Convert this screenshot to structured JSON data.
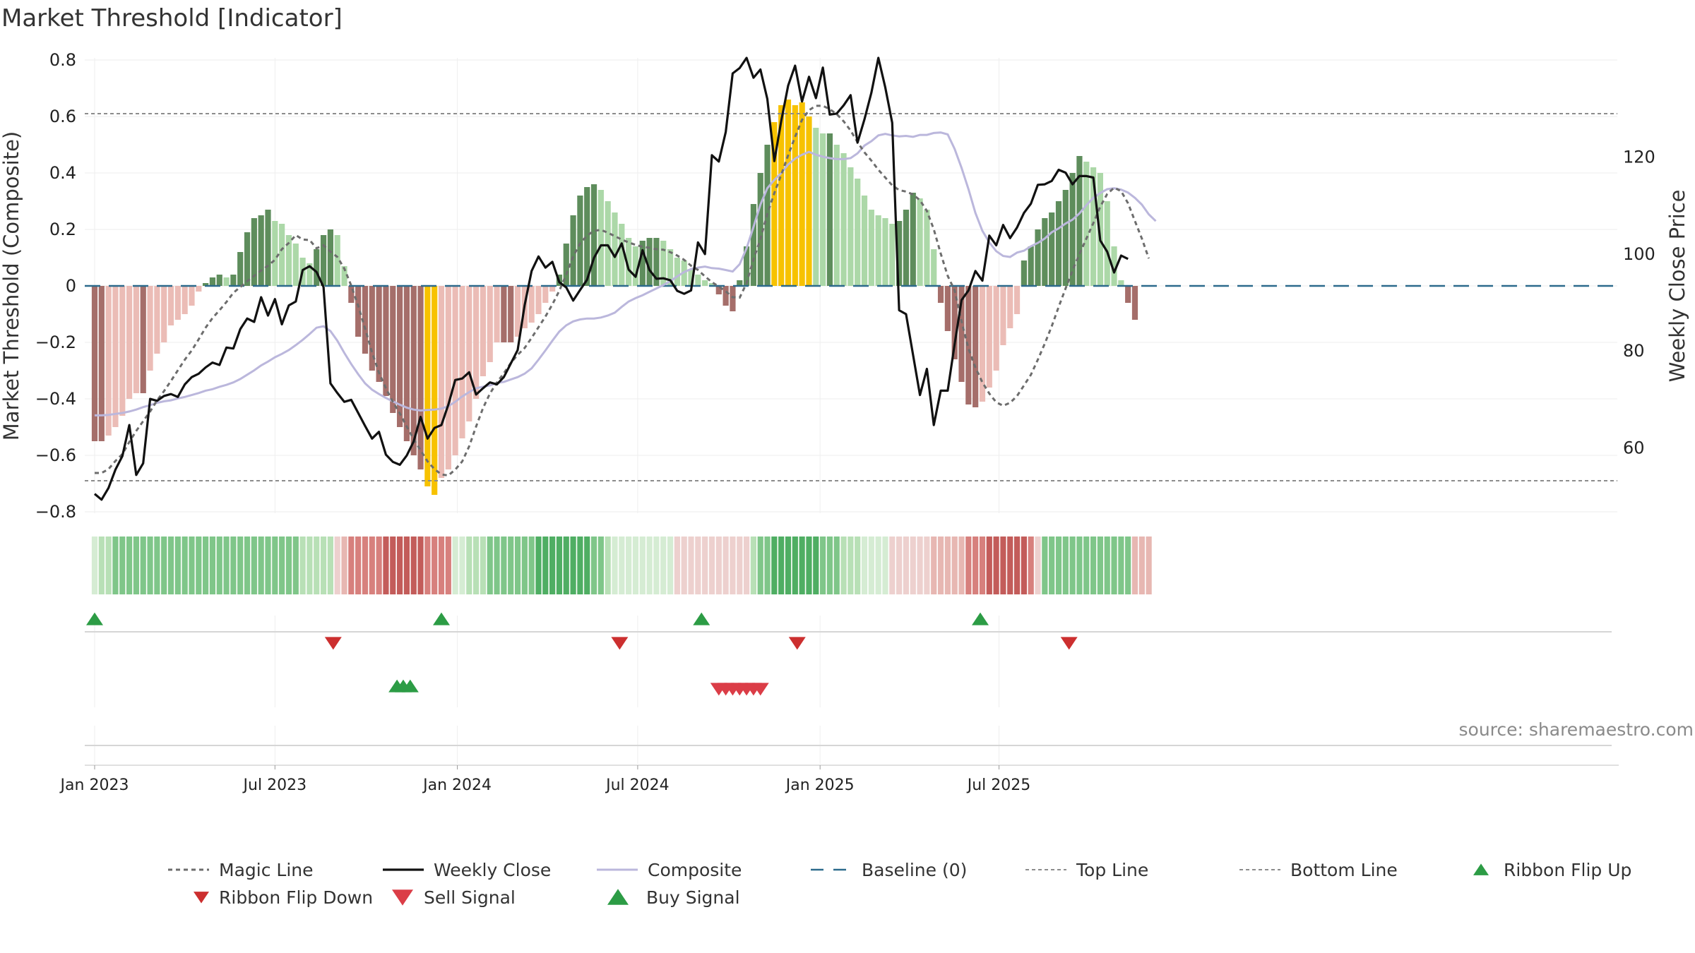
{
  "chart_data": {
    "type": "bar",
    "title": "Market Threshold [Indicator]",
    "ylabel_left": "Market Threshold (Composite)",
    "ylabel_right": "Weekly Close Price",
    "ylim_left": [
      -0.8,
      0.8
    ],
    "ylim_right": [
      46.5,
      140.5
    ],
    "yticks_left": [
      {
        "value": 0.8,
        "label": "0.8"
      },
      {
        "value": 0.6,
        "label": "0.6"
      },
      {
        "value": 0.4,
        "label": "0.4"
      },
      {
        "value": 0.2,
        "label": "0.2"
      },
      {
        "value": 0,
        "label": "0"
      },
      {
        "value": -0.2,
        "label": "−0.2"
      },
      {
        "value": -0.4,
        "label": "−0.4"
      },
      {
        "value": -0.6,
        "label": "−0.6"
      },
      {
        "value": -0.8,
        "label": "−0.8"
      }
    ],
    "yticks_right": [
      {
        "value": 120,
        "label": "120"
      },
      {
        "value": 100,
        "label": "100"
      },
      {
        "value": 80,
        "label": "80"
      },
      {
        "value": 60,
        "label": "60"
      }
    ],
    "xticks": [
      {
        "week": 0,
        "label": "Jan 2023"
      },
      {
        "week": 26,
        "label": "Jul 2023"
      },
      {
        "week": 52.3,
        "label": "Jan 2024"
      },
      {
        "week": 78.3,
        "label": "Jul 2024"
      },
      {
        "week": 104.6,
        "label": "Jan 2025"
      },
      {
        "week": 130.4,
        "label": "Jul 2025"
      }
    ],
    "top_line": 0.61,
    "bottom_line": -0.69,
    "baseline": 0,
    "composite_bars": [
      -0.55,
      -0.55,
      -0.53,
      -0.5,
      -0.46,
      -0.4,
      -0.38,
      -0.38,
      -0.3,
      -0.24,
      -0.2,
      -0.14,
      -0.12,
      -0.1,
      -0.07,
      -0.02,
      0.01,
      0.03,
      0.04,
      0.03,
      0.04,
      0.12,
      0.19,
      0.24,
      0.25,
      0.27,
      0.23,
      0.22,
      0.18,
      0.15,
      0.1,
      0.08,
      0.13,
      0.18,
      0.2,
      0.18,
      0.07,
      -0.06,
      -0.18,
      -0.24,
      -0.3,
      -0.34,
      -0.39,
      -0.45,
      -0.5,
      -0.55,
      -0.6,
      -0.65,
      -0.71,
      -0.74,
      -0.68,
      -0.65,
      -0.6,
      -0.54,
      -0.48,
      -0.4,
      -0.32,
      -0.27,
      -0.2,
      -0.2,
      -0.2,
      -0.18,
      -0.15,
      -0.13,
      -0.1,
      -0.06,
      -0.02,
      0.04,
      0.15,
      0.25,
      0.32,
      0.35,
      0.36,
      0.34,
      0.3,
      0.26,
      0.22,
      0.17,
      0.14,
      0.16,
      0.17,
      0.17,
      0.16,
      0.13,
      0.1,
      0.09,
      0.06,
      0.04,
      0.02,
      0.01,
      -0.03,
      -0.07,
      -0.09,
      0.02,
      0.14,
      0.29,
      0.4,
      0.5,
      0.58,
      0.64,
      0.66,
      0.64,
      0.65,
      0.6,
      0.56,
      0.54,
      0.54,
      0.5,
      0.47,
      0.42,
      0.38,
      0.32,
      0.27,
      0.25,
      0.24,
      0.22,
      0.23,
      0.27,
      0.33,
      0.31,
      0.27,
      0.13,
      -0.06,
      -0.16,
      -0.26,
      -0.34,
      -0.42,
      -0.43,
      -0.41,
      -0.36,
      -0.3,
      -0.21,
      -0.15,
      -0.1,
      0.09,
      0.14,
      0.2,
      0.24,
      0.26,
      0.3,
      0.34,
      0.4,
      0.46,
      0.44,
      0.42,
      0.4,
      0.3,
      0.14,
      0.02,
      -0.06,
      -0.12
    ],
    "price_weekly_close": [
      50.5,
      49.3,
      51.7,
      55.5,
      58.3,
      64.7,
      54.4,
      56.8,
      70.1,
      69.7,
      70.7,
      71.1,
      70.5,
      73.1,
      74.6,
      75.3,
      76.6,
      77.6,
      77.1,
      80.7,
      80.5,
      84.5,
      86.7,
      86,
      91.1,
      87.3,
      90.7,
      85.5,
      89.4,
      90.2,
      96.7,
      97.5,
      96.3,
      93.2,
      73.3,
      71.3,
      69.5,
      69.9,
      67.2,
      64.5,
      61.9,
      63.3,
      58.6,
      57.1,
      56.5,
      58.4,
      61.3,
      66.4,
      61.9,
      64.1,
      64.7,
      68.9,
      74,
      74.3,
      75.6,
      71,
      72.3,
      73.5,
      73.1,
      74.6,
      77.4,
      80.2,
      89.4,
      96.5,
      99.5,
      97.2,
      98.4,
      94.2,
      93.1,
      90.4,
      92.6,
      94.7,
      99.2,
      101.8,
      101.8,
      99.4,
      102.2,
      96.8,
      95.3,
      100.8,
      96.7,
      94.9,
      95,
      94.6,
      92.4,
      91.8,
      92.5,
      102.4,
      100,
      120.4,
      119.1,
      125.2,
      137.3,
      138.4,
      140.5,
      136.4,
      138.1,
      132,
      119.2,
      127.5,
      134.8,
      138.9,
      131.5,
      136.6,
      132.2,
      138.5,
      128.8,
      129,
      130.7,
      132.8,
      123,
      127.8,
      133.3,
      140.5,
      134.4,
      127.1,
      88.4,
      87.6,
      79.2,
      70.9,
      76.3,
      64.7,
      71.8,
      71.8,
      81.4,
      90.5,
      92.5,
      96.5,
      94.5,
      103.8,
      101.8,
      106,
      103.3,
      105.5,
      108.5,
      110.4,
      114.3,
      114.4,
      115.1,
      117.4,
      116.8,
      114.4,
      116.1,
      116.1,
      115.8,
      102.8,
      100.5,
      96.2,
      99.7,
      99
    ],
    "price_magic_line": [
      54.8,
      54.8,
      55.6,
      57.3,
      58.7,
      61.2,
      63.5,
      65.5,
      67.5,
      69.8,
      71.7,
      73.8,
      76,
      78.2,
      80.1,
      82.4,
      84.8,
      86.8,
      88.4,
      90.1,
      92,
      93.2,
      94.4,
      95.5,
      96.6,
      97.6,
      98.8,
      101,
      102.3,
      103.9,
      103,
      102.9,
      101.2,
      101.8,
      100.5,
      99.4,
      97,
      93.5,
      89.3,
      84.6,
      79.7,
      75.5,
      72.3,
      69.5,
      67.1,
      64.4,
      61.8,
      59.5,
      57.2,
      55.6,
      54.5,
      54.3,
      55.5,
      57.2,
      60.3,
      64.4,
      68.2,
      71.2,
      73.5,
      75.4,
      77.5,
      79.2,
      80.6,
      82.7,
      84.9,
      87.1,
      89.6,
      92.4,
      95.8,
      99.5,
      102.2,
      103.8,
      104.8,
      105,
      104.4,
      103.7,
      103,
      102.4,
      101.9,
      101.5,
      101.3,
      101,
      100.9,
      100.4,
      99.7,
      98.8,
      97.6,
      96.7,
      95.4,
      94.2,
      93.3,
      92.3,
      91.1,
      91,
      94,
      98.9,
      103.1,
      108.3,
      112.6,
      116.4,
      120.4,
      124.2,
      127.7,
      129.7,
      130.6,
      130.6,
      129.9,
      128.9,
      127.4,
      125.5,
      123.1,
      121,
      119.3,
      117.4,
      115.8,
      114.2,
      113.2,
      112.9,
      112.3,
      111.1,
      108.9,
      105.1,
      100.1,
      95.5,
      92.5,
      86.1,
      80.5,
      76.6,
      73.5,
      71.2,
      69.4,
      68.7,
      69.3,
      70.7,
      72.9,
      75.1,
      78.2,
      81.5,
      85.1,
      89.1,
      92.9,
      96.6,
      100,
      103.2,
      106.4,
      109.8,
      112.4,
      113.7,
      113,
      110.5,
      106.8,
      103.2,
      99.1
    ],
    "price_composite_line": [
      66.7,
      66.7,
      66.8,
      67,
      67.2,
      67.5,
      67.9,
      68.4,
      68.8,
      69.3,
      69.6,
      69.8,
      70.2,
      70.5,
      70.9,
      71.3,
      71.8,
      72.1,
      72.6,
      73,
      73.5,
      74.2,
      75.1,
      76,
      77,
      77.8,
      78.7,
      79.4,
      80.2,
      81.2,
      82.3,
      83.5,
      84.8,
      85.1,
      84.1,
      82.1,
      79.6,
      77.3,
      75.2,
      73.3,
      72,
      71.1,
      70.3,
      69.6,
      68.9,
      68.3,
      67.9,
      67.7,
      67.8,
      67.9,
      68.1,
      68.6,
      69.5,
      70.6,
      71.5,
      72.3,
      72.6,
      72.9,
      73.4,
      73.6,
      74.1,
      74.6,
      75.3,
      76.4,
      78.2,
      80.1,
      82.1,
      84,
      85.3,
      86.1,
      86.5,
      86.7,
      86.7,
      86.9,
      87.3,
      87.9,
      89.1,
      90.2,
      90.9,
      91.5,
      92.2,
      92.9,
      93.6,
      94.4,
      95.4,
      96.3,
      96.9,
      97.2,
      97.4,
      97.1,
      97,
      96.7,
      96.4,
      97.9,
      101.2,
      105.6,
      110.2,
      113.6,
      115.3,
      116.7,
      118.5,
      119.7,
      120.5,
      121.1,
      120.5,
      120.1,
      119.8,
      119.6,
      119.6,
      119.8,
      120.8,
      122.4,
      123.3,
      124.5,
      124.8,
      124.5,
      124.3,
      124.4,
      124.2,
      124.6,
      124.6,
      125,
      125.1,
      124.7,
      121.7,
      117.8,
      113.4,
      108.5,
      104.8,
      102.4,
      100.6,
      99.6,
      99.4,
      100.3,
      100.7,
      101.6,
      102.3,
      103.2,
      104.5,
      105.3,
      106.3,
      107.1,
      108.4,
      110.1,
      111.6,
      112.6,
      113.4,
      113.6,
      113.3,
      112.7,
      111.6,
      110.2,
      108.2,
      106.8
    ],
    "ribbon": [
      "gs1",
      "gs2",
      "gs2",
      "gs3",
      "gs3",
      "gs3",
      "gs3",
      "gs3",
      "gs3",
      "gs3",
      "gs3",
      "gs3",
      "gs3",
      "gs3",
      "gs3",
      "gs3",
      "gs3",
      "gs3",
      "gs3",
      "gs3",
      "gs3",
      "gs3",
      "gs3",
      "gs3",
      "gs3",
      "gs3",
      "gs3",
      "gs3",
      "gs3",
      "gs3",
      "gs2",
      "gs2",
      "gs2",
      "gs2",
      "gs2",
      "rs1",
      "rs2",
      "rs3",
      "rs3",
      "rs3",
      "rs3",
      "rs3",
      "rs4",
      "rs4",
      "rs4",
      "rs4",
      "rs4",
      "rs4",
      "rs3",
      "rs3",
      "rs3",
      "rs3",
      "gs1",
      "gs1",
      "gs2",
      "gs2",
      "gs2",
      "gs3",
      "gs3",
      "gs3",
      "gs3",
      "gs3",
      "gs3",
      "gs3",
      "gs4",
      "gs4",
      "gs4",
      "gs4",
      "gs4",
      "gs4",
      "gs4",
      "gs4",
      "gs3",
      "gs3",
      "gs2",
      "gs1",
      "gs1",
      "gs1",
      "gs1",
      "gs1",
      "gs1",
      "gs1",
      "gs1",
      "gs1",
      "rs1",
      "rs1",
      "rs1",
      "rs1",
      "rs1",
      "rs1",
      "rs1",
      "rs1",
      "rs1",
      "rs1",
      "rs1",
      "gs2",
      "gs3",
      "gs3",
      "gs4",
      "gs4",
      "gs4",
      "gs4",
      "gs4",
      "gs4",
      "gs4",
      "gs3",
      "gs3",
      "gs3",
      "gs2",
      "gs2",
      "gs2",
      "gs1",
      "gs1",
      "gs1",
      "gs1",
      "rs1",
      "rs1",
      "rs1",
      "rs1",
      "rs1",
      "rs1",
      "rs2",
      "rs2",
      "rs2",
      "rs2",
      "rs2",
      "rs3",
      "rs3",
      "rs3",
      "rs4",
      "rs4",
      "rs4",
      "rs4",
      "rs4",
      "rs4",
      "rs3",
      "rs1",
      "gs3",
      "gs3",
      "gs3",
      "gs3",
      "gs3",
      "gs3",
      "gs3",
      "gs3",
      "gs3",
      "gs3",
      "gs3",
      "gs3",
      "gs3",
      "rs2",
      "rs2",
      "rs2"
    ],
    "ribbon_flip_up_weeks": [
      0,
      50,
      87.5,
      127.7
    ],
    "ribbon_flip_down_weeks": [
      34.4,
      75.7,
      101.3,
      140.5
    ],
    "buy_signal_weeks": [
      43.6,
      44.5,
      45.5
    ],
    "sell_signal_weeks": [
      90,
      91,
      92,
      93,
      94,
      95,
      96
    ],
    "source_text": "source: sharemaestro.com",
    "legend": [
      {
        "name": "Magic Line"
      },
      {
        "name": "Weekly Close"
      },
      {
        "name": "Composite"
      },
      {
        "name": "Baseline (0)"
      },
      {
        "name": "Top Line"
      },
      {
        "name": "Bottom Line"
      },
      {
        "name": "Ribbon Flip Up"
      },
      {
        "name": "Ribbon Flip Down"
      },
      {
        "name": "Sell Signal"
      },
      {
        "name": "Buy Signal"
      }
    ]
  },
  "colors": {
    "bar_pos_light": "#acd8a8",
    "bar_pos_dark": "#5e8d5c",
    "bar_neg_light": "#ebbcb6",
    "bar_neg_dark": "#a56e6a",
    "bar_extreme": "#f7c200",
    "line_close": "#111111",
    "line_magic": "#6d6d6d",
    "line_composite": "#bbb7dc",
    "baseline": "#2c6a8c",
    "grid": "#eeeeee",
    "ref_line": "#8c8c8c",
    "marker_up": "#2c9c45",
    "marker_down": "#cc2f2f",
    "marker_sell": "#db3d47",
    "gs1": "#d5ecd3",
    "gs2": "#b8e0b6",
    "gs3": "#7fc689",
    "gs4": "#4fae63",
    "rs1": "#edd0ce",
    "rs2": "#e7b7b2",
    "rs3": "#d7807d",
    "rs4": "#c35c5a"
  }
}
